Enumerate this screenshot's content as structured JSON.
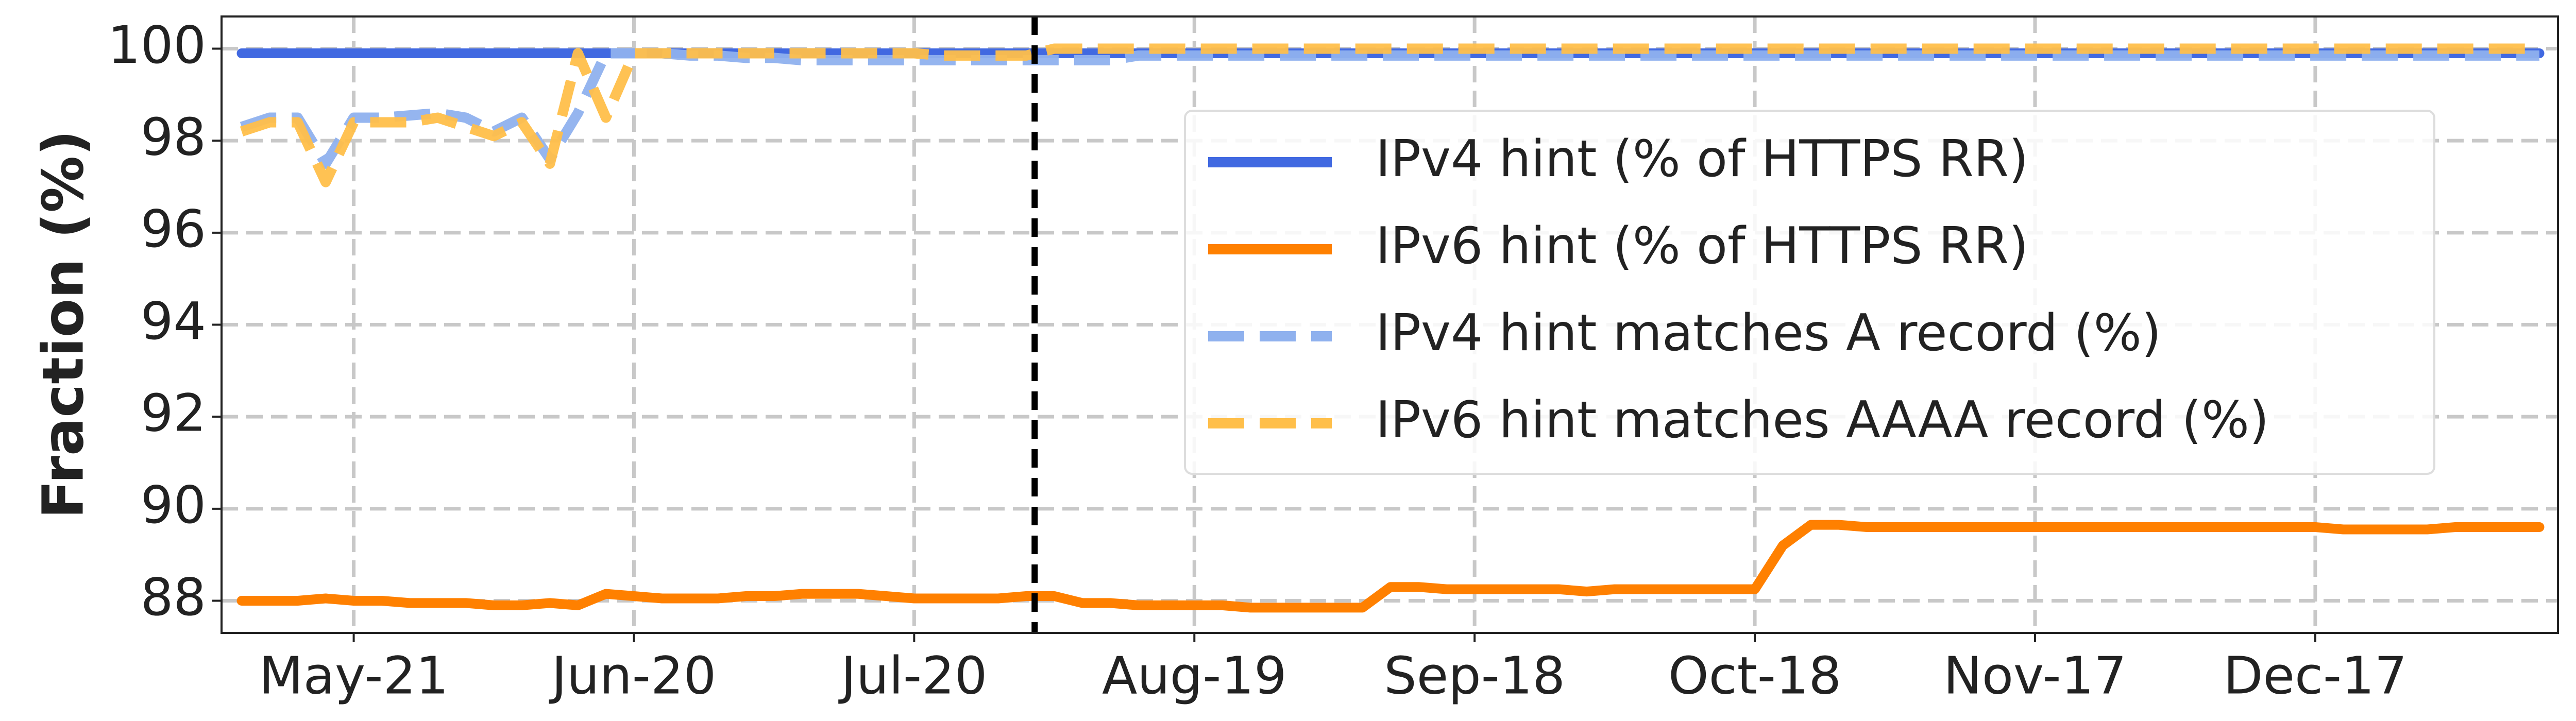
{
  "chart_data": {
    "type": "line",
    "ylabel": "Fraction (%)",
    "categories": [
      null,
      null,
      null,
      null,
      "May-21",
      null,
      null,
      null,
      null,
      null,
      null,
      null,
      null,
      null,
      "Jun-20",
      null,
      null,
      null,
      null,
      null,
      null,
      null,
      null,
      null,
      "Jul-20",
      null,
      null,
      null,
      null,
      null,
      null,
      null,
      null,
      null,
      "Aug-19",
      null,
      null,
      null,
      null,
      null,
      null,
      null,
      null,
      null,
      "Sep-18",
      null,
      null,
      null,
      null,
      null,
      null,
      null,
      null,
      null,
      "Oct-18",
      null,
      null,
      null,
      null,
      null,
      null,
      null,
      null,
      null,
      "Nov-17",
      null,
      null,
      null,
      null,
      null,
      null,
      null,
      null,
      null,
      "Dec-17",
      null,
      null,
      null,
      null,
      null,
      null,
      null,
      null
    ],
    "ylim": [
      87.3,
      100.7
    ],
    "yticks": [
      88,
      90,
      92,
      94,
      96,
      98,
      100
    ],
    "grid": true,
    "legend": "upper right",
    "marker_index": 28.3,
    "series": [
      {
        "name": "IPv4 hint (% of HTTPS RR)",
        "color": "#4169e1",
        "dashed": false,
        "values": [
          99.9,
          99.9,
          99.9,
          99.9,
          99.9,
          99.9,
          99.9,
          99.9,
          99.9,
          99.9,
          99.9,
          99.9,
          99.9,
          99.9,
          99.9,
          99.9,
          99.9,
          99.9,
          99.9,
          99.9,
          99.9,
          99.9,
          99.9,
          99.9,
          99.9,
          99.9,
          99.9,
          99.9,
          99.9,
          99.9,
          99.9,
          99.9,
          99.9,
          99.9,
          99.9,
          99.9,
          99.9,
          99.9,
          99.9,
          99.9,
          99.9,
          99.9,
          99.9,
          99.9,
          99.9,
          99.9,
          99.9,
          99.9,
          99.9,
          99.9,
          99.9,
          99.9,
          99.9,
          99.9,
          99.9,
          99.9,
          99.9,
          99.9,
          99.9,
          99.9,
          99.9,
          99.9,
          99.9,
          99.9,
          99.9,
          99.9,
          99.9,
          99.9,
          99.9,
          99.9,
          99.9,
          99.9,
          99.9,
          99.9,
          99.9,
          99.9,
          99.9,
          99.9,
          99.9,
          99.9,
          99.9,
          99.9,
          99.9
        ]
      },
      {
        "name": "IPv6 hint (% of HTTPS RR)",
        "color": "#ff8000",
        "dashed": false,
        "values": [
          88.0,
          88.0,
          88.0,
          88.05,
          88.0,
          88.0,
          87.95,
          87.95,
          87.95,
          87.9,
          87.9,
          87.95,
          87.9,
          88.15,
          88.1,
          88.05,
          88.05,
          88.05,
          88.1,
          88.1,
          88.15,
          88.15,
          88.15,
          88.1,
          88.05,
          88.05,
          88.05,
          88.05,
          88.1,
          88.1,
          87.95,
          87.95,
          87.9,
          87.9,
          87.9,
          87.9,
          87.85,
          87.85,
          87.85,
          87.85,
          87.85,
          88.3,
          88.3,
          88.25,
          88.25,
          88.25,
          88.25,
          88.25,
          88.2,
          88.25,
          88.25,
          88.25,
          88.25,
          88.25,
          88.25,
          89.2,
          89.65,
          89.65,
          89.6,
          89.6,
          89.6,
          89.6,
          89.6,
          89.6,
          89.6,
          89.6,
          89.6,
          89.6,
          89.6,
          89.6,
          89.6,
          89.6,
          89.6,
          89.6,
          89.6,
          89.55,
          89.55,
          89.55,
          89.55,
          89.6,
          89.6,
          89.6,
          89.6
        ]
      },
      {
        "name": "IPv4 hint matches A record (%)",
        "color": "#8fb1ee",
        "dashed": true,
        "values": [
          98.3,
          98.5,
          98.5,
          97.5,
          98.5,
          98.5,
          98.55,
          98.6,
          98.5,
          98.2,
          98.5,
          97.6,
          98.6,
          99.9,
          99.9,
          99.9,
          99.85,
          99.85,
          99.8,
          99.8,
          99.75,
          99.75,
          99.75,
          99.75,
          99.75,
          99.75,
          99.75,
          99.75,
          99.75,
          99.75,
          99.75,
          99.75,
          99.85,
          99.85,
          99.85,
          99.85,
          99.85,
          99.85,
          99.85,
          99.85,
          99.85,
          99.85,
          99.85,
          99.85,
          99.85,
          99.85,
          99.85,
          99.85,
          99.85,
          99.85,
          99.85,
          99.85,
          99.85,
          99.85,
          99.85,
          99.85,
          99.85,
          99.85,
          99.85,
          99.85,
          99.85,
          99.85,
          99.85,
          99.85,
          99.85,
          99.85,
          99.85,
          99.85,
          99.85,
          99.85,
          99.85,
          99.85,
          99.85,
          99.85,
          99.85,
          99.85,
          99.85,
          99.85,
          99.85,
          99.85,
          99.85,
          99.85,
          99.85
        ]
      },
      {
        "name": "IPv6 hint matches AAAA record (%)",
        "color": "#ffbf4a",
        "dashed": true,
        "values": [
          98.2,
          98.4,
          98.4,
          97.1,
          98.4,
          98.4,
          98.4,
          98.5,
          98.3,
          98.1,
          98.4,
          97.5,
          99.9,
          98.5,
          99.9,
          99.9,
          99.9,
          99.9,
          99.9,
          99.9,
          99.9,
          99.9,
          99.9,
          99.9,
          99.9,
          99.85,
          99.85,
          99.85,
          99.85,
          100.0,
          100.0,
          100.0,
          100.0,
          100.0,
          100.0,
          100.0,
          100.0,
          100.0,
          100.0,
          100.0,
          100.0,
          100.0,
          100.0,
          100.0,
          100.0,
          100.0,
          100.0,
          100.0,
          100.0,
          100.0,
          100.0,
          100.0,
          100.0,
          100.0,
          100.0,
          100.0,
          100.0,
          100.0,
          100.0,
          100.0,
          100.0,
          100.0,
          100.0,
          100.0,
          100.0,
          100.0,
          100.0,
          100.0,
          100.0,
          100.0,
          100.0,
          100.0,
          100.0,
          100.0,
          100.0,
          100.0,
          100.0,
          100.0,
          100.0,
          100.0,
          100.0,
          100.0,
          100.0
        ]
      }
    ]
  }
}
